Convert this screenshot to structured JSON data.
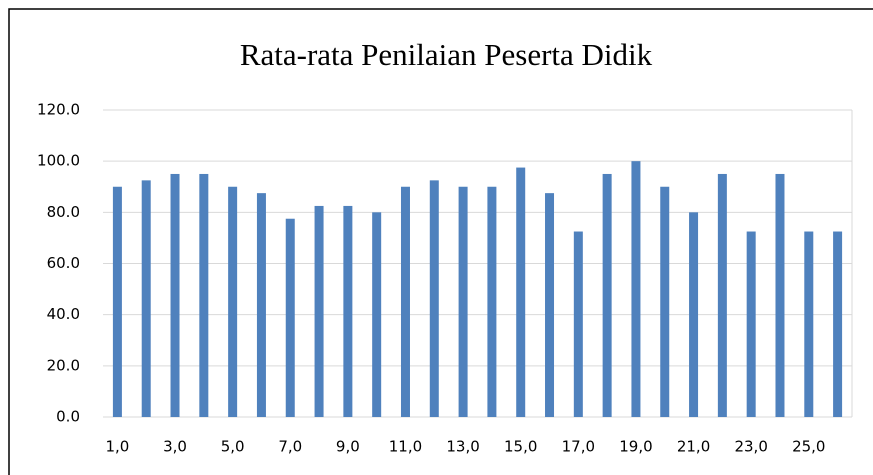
{
  "chart_data": {
    "type": "bar",
    "title": "Rata-rata Penilaian Peserta Didik",
    "categories": [
      "1,0",
      null,
      "3,0",
      null,
      "5,0",
      null,
      "7,0",
      null,
      "9,0",
      null,
      "11,0",
      null,
      "13,0",
      null,
      "15,0",
      null,
      "17,0",
      null,
      "19,0",
      null,
      "21,0",
      null,
      "23,0",
      null,
      "25,0",
      null
    ],
    "values": [
      90,
      92.5,
      95,
      95,
      90,
      87.5,
      77.5,
      82.5,
      82.5,
      80,
      90,
      92.5,
      90,
      90,
      97.5,
      87.5,
      72.5,
      95,
      100,
      90,
      80,
      95,
      72.5,
      95,
      72.5,
      72.5
    ],
    "color": "#4f81bd",
    "ylim": [
      0,
      120
    ],
    "yticks": [
      {
        "value": 0,
        "label": "0.0"
      },
      {
        "value": 20,
        "label": "20.0"
      },
      {
        "value": 40,
        "label": "40.0"
      },
      {
        "value": 60,
        "label": "60.0"
      },
      {
        "value": 80,
        "label": "80.0"
      },
      {
        "value": 100,
        "label": "100.0"
      },
      {
        "value": 120,
        "label": "120.0"
      }
    ],
    "grid": true
  }
}
